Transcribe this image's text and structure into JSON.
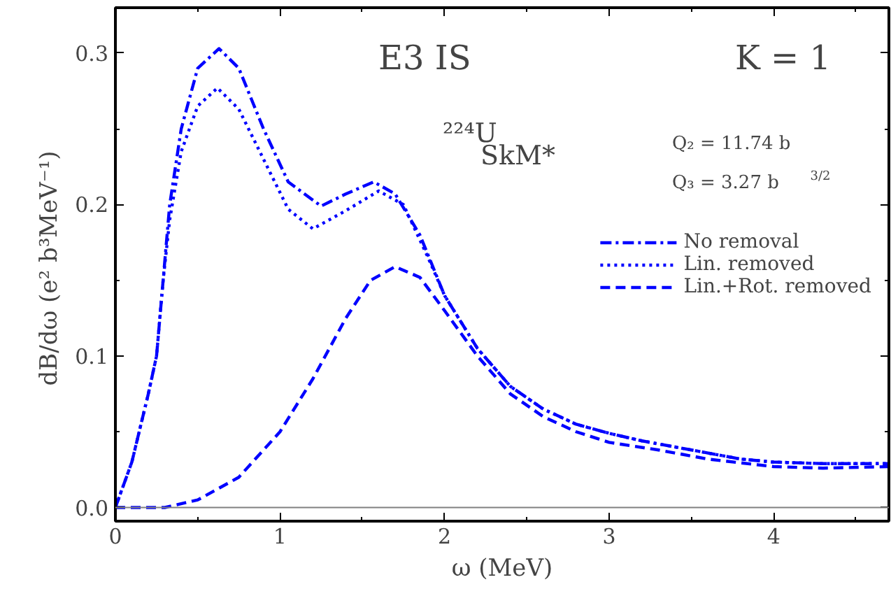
{
  "chart_data": {
    "type": "line",
    "xlabel": "ω (MeV)",
    "ylabel": "dB/dω  (e² b³MeV⁻¹)",
    "annotations": [
      "E3 IS",
      "K = 1",
      "²²⁴U",
      "SkM*",
      "Q₂ = 11.74 b",
      "Q₃ =   3.27 b$^{3/2}$"
    ],
    "xlim": [
      0,
      4.7
    ],
    "ylim": [
      -0.009,
      0.33
    ],
    "xticks": [
      0,
      1,
      2,
      3,
      4
    ],
    "yticks": [
      {
        "value": 0,
        "label": "0.0"
      },
      0.1,
      0.2,
      0.3
    ],
    "grid": false,
    "legend": "right",
    "marker": "none",
    "ref_lines": [
      {
        "axis": "y",
        "value": 0,
        "label": null,
        "color": "#808080"
      }
    ],
    "series": [
      {
        "name": "No removal",
        "color": "#0000ff",
        "line_style": "dashdot",
        "x": [
          0,
          0.1,
          0.2,
          0.25,
          0.29,
          0.33,
          0.4,
          0.5,
          0.63,
          0.75,
          0.9,
          1.05,
          1.25,
          1.4,
          1.57,
          1.7,
          1.85,
          2.0,
          2.2,
          2.4,
          2.6,
          2.8,
          3.0,
          3.2,
          3.5,
          3.8,
          4.0,
          4.3,
          4.7
        ],
        "values": [
          0,
          0.03,
          0.075,
          0.1,
          0.15,
          0.2,
          0.25,
          0.29,
          0.303,
          0.29,
          0.25,
          0.215,
          0.199,
          0.207,
          0.215,
          0.207,
          0.18,
          0.14,
          0.105,
          0.08,
          0.065,
          0.055,
          0.049,
          0.044,
          0.038,
          0.032,
          0.03,
          0.029,
          0.029
        ]
      },
      {
        "name": "Lin. removed",
        "color": "#0000ff",
        "line_style": "dotted",
        "x": [
          0,
          0.1,
          0.2,
          0.25,
          0.29,
          0.33,
          0.4,
          0.5,
          0.62,
          0.75,
          0.9,
          1.05,
          1.2,
          1.4,
          1.6,
          1.75,
          1.9,
          2.0,
          2.2,
          2.4,
          2.6,
          2.8,
          3.0,
          3.2,
          3.5,
          3.8,
          4.0,
          4.3,
          4.7
        ],
        "values": [
          0,
          0.03,
          0.075,
          0.1,
          0.15,
          0.19,
          0.235,
          0.265,
          0.277,
          0.263,
          0.23,
          0.197,
          0.184,
          0.196,
          0.209,
          0.2,
          0.165,
          0.14,
          0.105,
          0.08,
          0.065,
          0.055,
          0.049,
          0.044,
          0.038,
          0.032,
          0.03,
          0.029,
          0.029
        ]
      },
      {
        "name": "Lin.+Rot. removed",
        "color": "#0000ff",
        "line_style": "dashed",
        "x": [
          0,
          0.3,
          0.5,
          0.75,
          1.0,
          1.2,
          1.4,
          1.55,
          1.7,
          1.85,
          2.0,
          2.2,
          2.4,
          2.6,
          2.8,
          3.0,
          3.3,
          3.6,
          4.0,
          4.3,
          4.7
        ],
        "values": [
          0,
          0,
          0.005,
          0.02,
          0.05,
          0.085,
          0.125,
          0.15,
          0.159,
          0.152,
          0.13,
          0.1,
          0.075,
          0.06,
          0.05,
          0.043,
          0.038,
          0.032,
          0.027,
          0.026,
          0.027
        ]
      }
    ]
  }
}
